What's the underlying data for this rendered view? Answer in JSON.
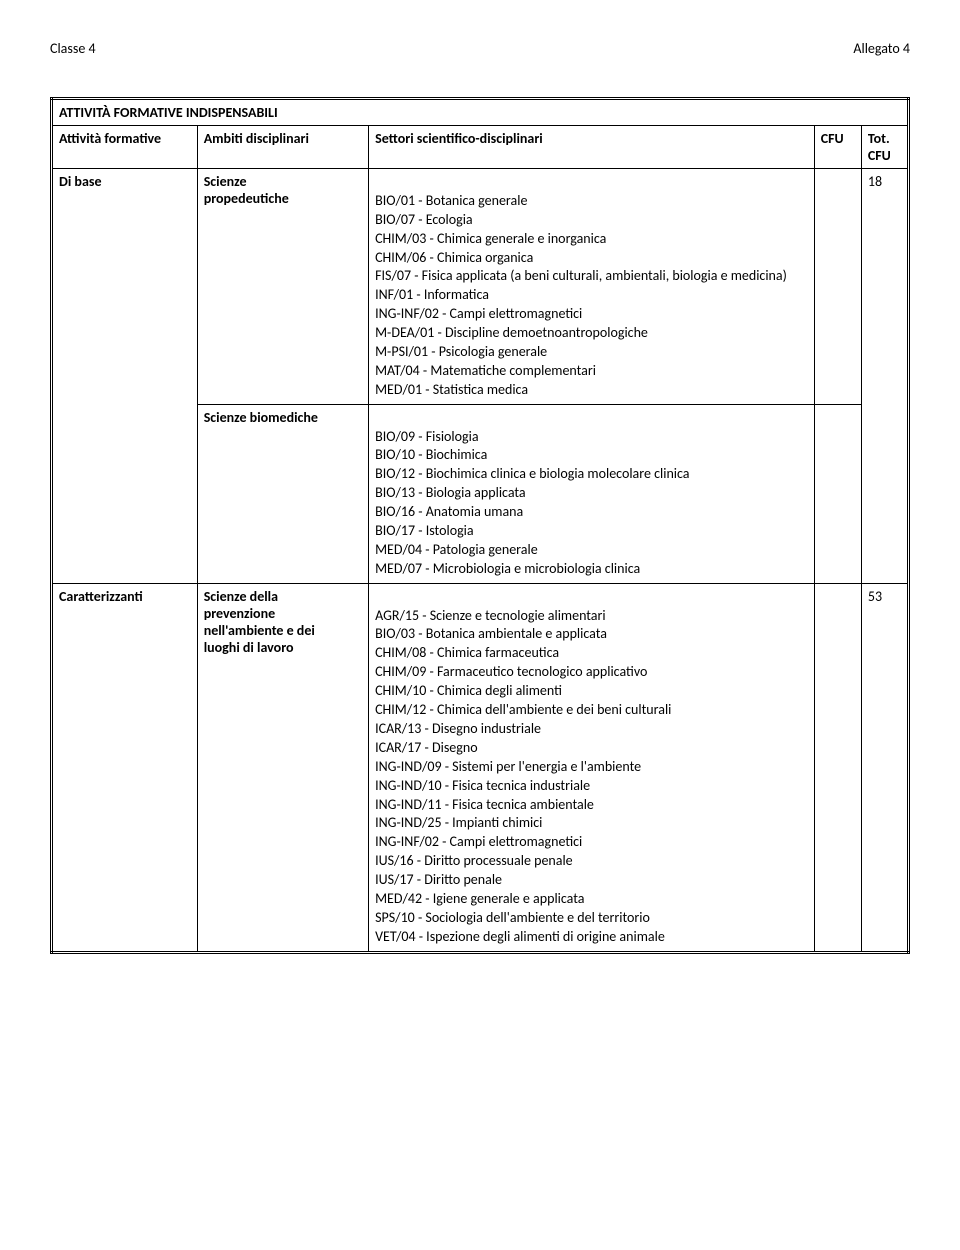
{
  "header": {
    "left": "Classe 4",
    "right": "Allegato 4"
  },
  "table": {
    "title": "ATTIVITÀ FORMATIVE INDISPENSABILI",
    "columns": {
      "attivita": "Attività formative",
      "ambiti": "Ambiti disciplinari",
      "settori": "Settori scientifico-disciplinari",
      "cfu": "CFU",
      "tot": "Tot. CFU"
    },
    "rows": [
      {
        "attivita": "Di base",
        "tot": "18",
        "groups": [
          {
            "ambito_lines": [
              "Scienze",
              "propedeutiche"
            ],
            "settori": [
              "",
              "BIO/01 - Botanica generale",
              "BIO/07 - Ecologia",
              "CHIM/03 - Chimica generale e inorganica",
              "CHIM/06 - Chimica organica",
              "FIS/07 - Fisica applicata (a beni culturali, ambientali, biologia e medicina)",
              "INF/01 - Informatica",
              "ING-INF/02 - Campi elettromagnetici",
              "M-DEA/01 - Discipline demoetnoantropologiche",
              "M-PSI/01 - Psicologia generale",
              "MAT/04 - Matematiche complementari",
              "MED/01 - Statistica medica"
            ]
          },
          {
            "ambito_lines": [
              "Scienze biomediche"
            ],
            "settori": [
              "",
              "BIO/09 - Fisiologia",
              "BIO/10 - Biochimica",
              "BIO/12 - Biochimica clinica e biologia molecolare clinica",
              "BIO/13 - Biologia applicata",
              "BIO/16 - Anatomia umana",
              "BIO/17 - Istologia",
              "MED/04 - Patologia generale",
              "MED/07 - Microbiologia e microbiologia clinica"
            ]
          }
        ]
      },
      {
        "attivita": "Caratterizzanti",
        "tot": "53",
        "groups": [
          {
            "ambito_lines": [
              "Scienze della",
              "prevenzione",
              "nell'ambiente e dei",
              "luoghi di lavoro"
            ],
            "settori": [
              "",
              "AGR/15 - Scienze e tecnologie alimentari",
              "BIO/03 - Botanica ambientale e applicata",
              "CHIM/08 - Chimica farmaceutica",
              "CHIM/09 - Farmaceutico tecnologico applicativo",
              "CHIM/10 - Chimica degli alimenti",
              "CHIM/12 - Chimica dell'ambiente e dei beni culturali",
              "ICAR/13 - Disegno industriale",
              "ICAR/17 - Disegno",
              "ING-IND/09 - Sistemi per l'energia e l'ambiente",
              "ING-IND/10 - Fisica tecnica industriale",
              "ING-IND/11 - Fisica tecnica ambientale",
              "ING-IND/25 - Impianti chimici",
              "ING-INF/02 - Campi elettromagnetici",
              "IUS/16 - Diritto processuale penale",
              "IUS/17 - Diritto penale",
              "MED/42 - Igiene generale e applicata",
              "SPS/10 - Sociologia dell'ambiente e del territorio",
              "VET/04 - Ispezione degli alimenti di origine animale"
            ]
          }
        ]
      }
    ]
  }
}
